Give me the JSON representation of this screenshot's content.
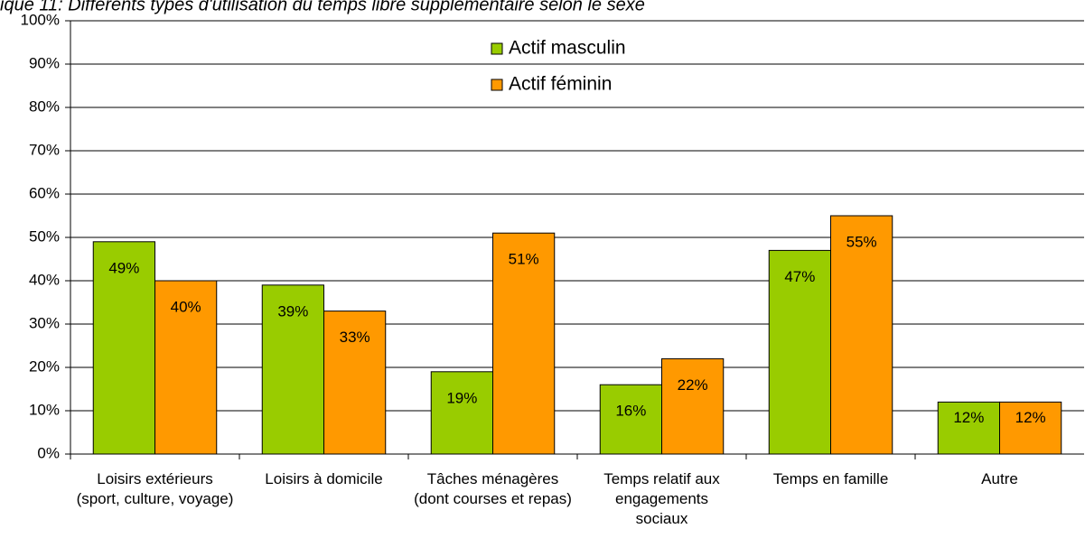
{
  "chart_data": {
    "type": "bar",
    "title": "ique 11: Différents types d'utilisation du temps libre supplémentaire selon le sexe",
    "categories": [
      "Loisirs extérieurs\n(sport, culture, voyage)",
      "Loisirs à domicile",
      "Tâches ménagères\n(dont courses et repas)",
      "Temps relatif aux\nengagements\nsociaux",
      "Temps en famille",
      "Autre"
    ],
    "series": [
      {
        "name": "Actif masculin",
        "color": "#99cc00",
        "values": [
          49,
          39,
          19,
          16,
          47,
          12
        ],
        "value_labels": [
          "49%",
          "39%",
          "19%",
          "16%",
          "47%",
          "12%"
        ]
      },
      {
        "name": "Actif féminin",
        "color": "#ff9900",
        "values": [
          40,
          33,
          51,
          22,
          55,
          12
        ],
        "value_labels": [
          "40%",
          "33%",
          "51%",
          "22%",
          "55%",
          "12%"
        ]
      }
    ],
    "ylim": [
      0,
      100
    ],
    "yticks": [
      {
        "value": 0,
        "label": "0%"
      },
      {
        "value": 10,
        "label": "10%"
      },
      {
        "value": 20,
        "label": "20%"
      },
      {
        "value": 30,
        "label": "30%"
      },
      {
        "value": 40,
        "label": "40%"
      },
      {
        "value": 50,
        "label": "50%"
      },
      {
        "value": 60,
        "label": "60%"
      },
      {
        "value": 70,
        "label": "70%"
      },
      {
        "value": 80,
        "label": "80%"
      },
      {
        "value": 90,
        "label": "90%"
      },
      {
        "value": 100,
        "label": "100%"
      }
    ],
    "grid": true,
    "legend": "top"
  }
}
